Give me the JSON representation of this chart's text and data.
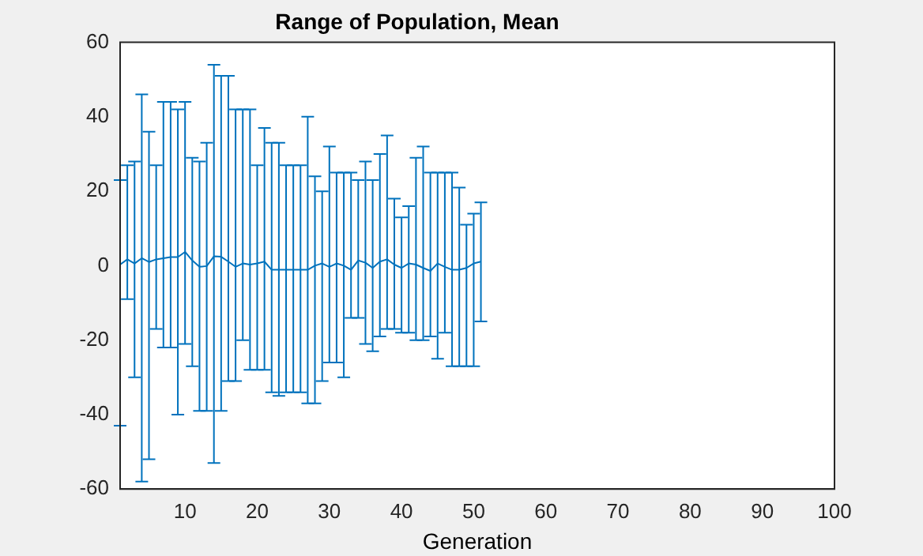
{
  "chart_data": {
    "type": "line",
    "title": "Range of Population, Mean",
    "xlabel": "Generation",
    "x": [
      1,
      2,
      3,
      4,
      5,
      6,
      7,
      8,
      9,
      10,
      11,
      12,
      13,
      14,
      15,
      16,
      17,
      18,
      19,
      20,
      21,
      22,
      23,
      24,
      25,
      26,
      27,
      28,
      29,
      30,
      31,
      32,
      33,
      34,
      35,
      36,
      37,
      38,
      39,
      40,
      41,
      42,
      43,
      44,
      45,
      46,
      47,
      48,
      49,
      50,
      51
    ],
    "series": [
      {
        "color": "#0072bd",
        "values": [
          0.3,
          1.7,
          0.6,
          2,
          1,
          1.7,
          2,
          2.3,
          2.3,
          3.7,
          1.4,
          -0.3,
          -0.1,
          2.5,
          2.4,
          1.1,
          -0.3,
          0.6,
          0.3,
          0.6,
          1.1,
          -1.1,
          -1.1,
          -1.1,
          -1.1,
          -1.1,
          -1.1,
          0,
          0.6,
          -0.3,
          0.6,
          0,
          -1.1,
          1.4,
          0.8,
          -0.6,
          1.1,
          1.7,
          0.3,
          -0.6,
          0.6,
          0.3,
          -0.6,
          -1.4,
          0.6,
          -0.3,
          -1.1,
          -1.1,
          -0.6,
          0.6,
          1.1
        ],
        "errors": [
          [
            -43,
            23
          ],
          [
            -9,
            27
          ],
          [
            -30,
            28
          ],
          [
            -58,
            46
          ],
          [
            -52,
            36
          ],
          [
            -17,
            27
          ],
          [
            -22,
            44
          ],
          [
            -22,
            44
          ],
          [
            -40,
            42
          ],
          [
            -21,
            44
          ],
          [
            -27,
            29
          ],
          [
            -39,
            28
          ],
          [
            -39,
            33
          ],
          [
            -53,
            54
          ],
          [
            -39,
            51
          ],
          [
            -31,
            51
          ],
          [
            -31,
            42
          ],
          [
            -20,
            42
          ],
          [
            -28,
            42
          ],
          [
            -28,
            27
          ],
          [
            -28,
            37
          ],
          [
            -34,
            33
          ],
          [
            -35,
            33
          ],
          [
            -34,
            27
          ],
          [
            -34,
            27
          ],
          [
            -34,
            27
          ],
          [
            -37,
            40
          ],
          [
            -37,
            24
          ],
          [
            -31,
            20
          ],
          [
            -26,
            32
          ],
          [
            -26,
            25
          ],
          [
            -30,
            25
          ],
          [
            -14,
            25
          ],
          [
            -14,
            23
          ],
          [
            -21,
            28
          ],
          [
            -23,
            23
          ],
          [
            -19,
            30
          ],
          [
            -17,
            35
          ],
          [
            -17,
            18
          ],
          [
            -18,
            13
          ],
          [
            -18,
            16
          ],
          [
            -20,
            29
          ],
          [
            -20,
            32
          ],
          [
            -19,
            25
          ],
          [
            -25,
            25
          ],
          [
            -18,
            25
          ],
          [
            -27,
            25
          ],
          [
            -27,
            21
          ],
          [
            -27,
            11
          ],
          [
            -27,
            14
          ],
          [
            -15,
            17
          ]
        ]
      }
    ],
    "xlim": [
      1,
      100
    ],
    "xticks": [
      10,
      20,
      30,
      40,
      50,
      60,
      70,
      80,
      90,
      100
    ],
    "ylim": [
      -60,
      60
    ],
    "yticks": [
      -60,
      -40,
      -20,
      0,
      20,
      40,
      60
    ],
    "grid": false,
    "legend": false,
    "marker": "none",
    "line_style": "solid"
  }
}
